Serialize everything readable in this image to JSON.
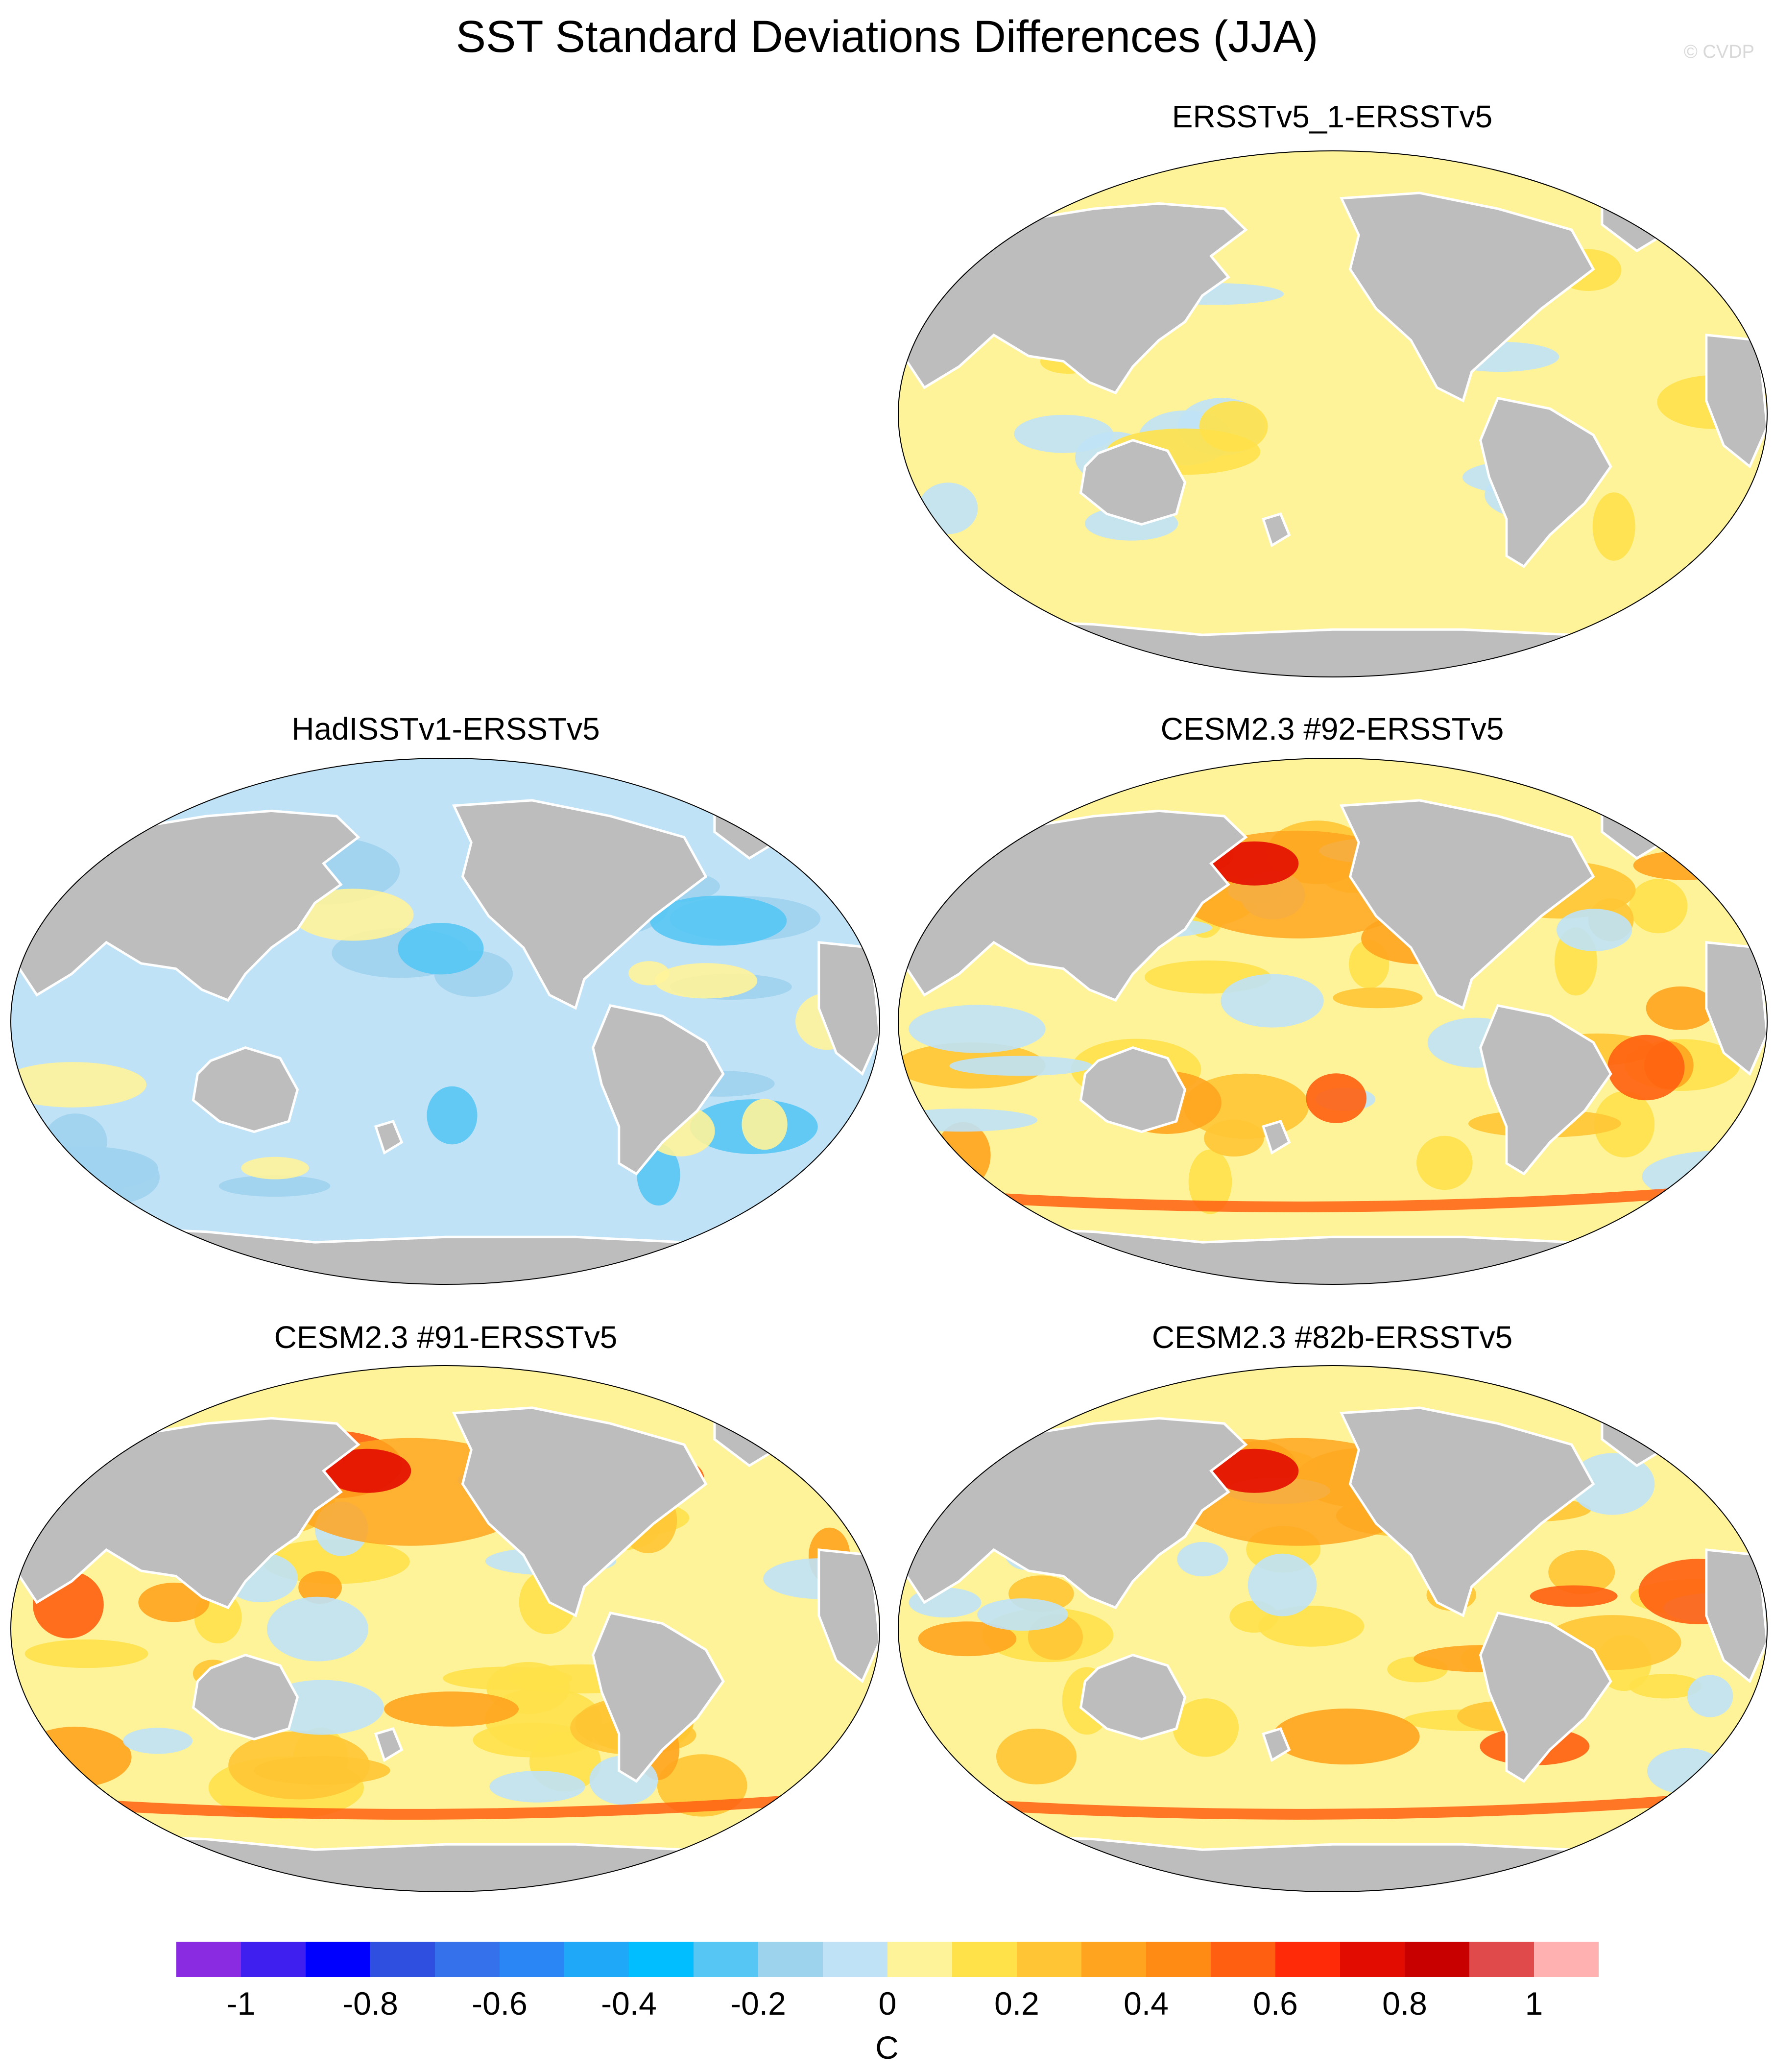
{
  "title": "SST Standard Deviations Differences (JJA)",
  "watermark": "© CVDP",
  "panels": [
    {
      "label": "ERSSTv5_1-ERSSTv5",
      "pattern": "near-zero"
    },
    {
      "label": "HadISSTv1-ERSSTv5",
      "pattern": "negative"
    },
    {
      "label": "CESM2.3 #92-ERSSTv5",
      "pattern": "positive"
    },
    {
      "label": "CESM2.3 #91-ERSSTv5",
      "pattern": "positive"
    },
    {
      "label": "CESM2.3 #82b-ERSSTv5",
      "pattern": "positive"
    }
  ],
  "colorbar": {
    "colors": [
      "#8a2be2",
      "#3f1ff0",
      "#0000ff",
      "#2e4fe0",
      "#3671ec",
      "#2b86f5",
      "#1ea8f7",
      "#00beff",
      "#56c6f4",
      "#9ed3ee",
      "#bfe2f6",
      "#fff39a",
      "#ffe14a",
      "#ffc534",
      "#ffa41e",
      "#ff8a14",
      "#ff5f10",
      "#ff2a08",
      "#e30c00",
      "#c80000",
      "#e04a4a",
      "#ffb0b0"
    ],
    "ticks": [
      "-1",
      "-0.8",
      "-0.6",
      "-0.4",
      "-0.2",
      "0",
      "0.2",
      "0.4",
      "0.6",
      "0.8",
      "1"
    ],
    "unit": "C"
  },
  "map_colors": {
    "land": "#bdbdbd",
    "coast": "#ffffff"
  }
}
